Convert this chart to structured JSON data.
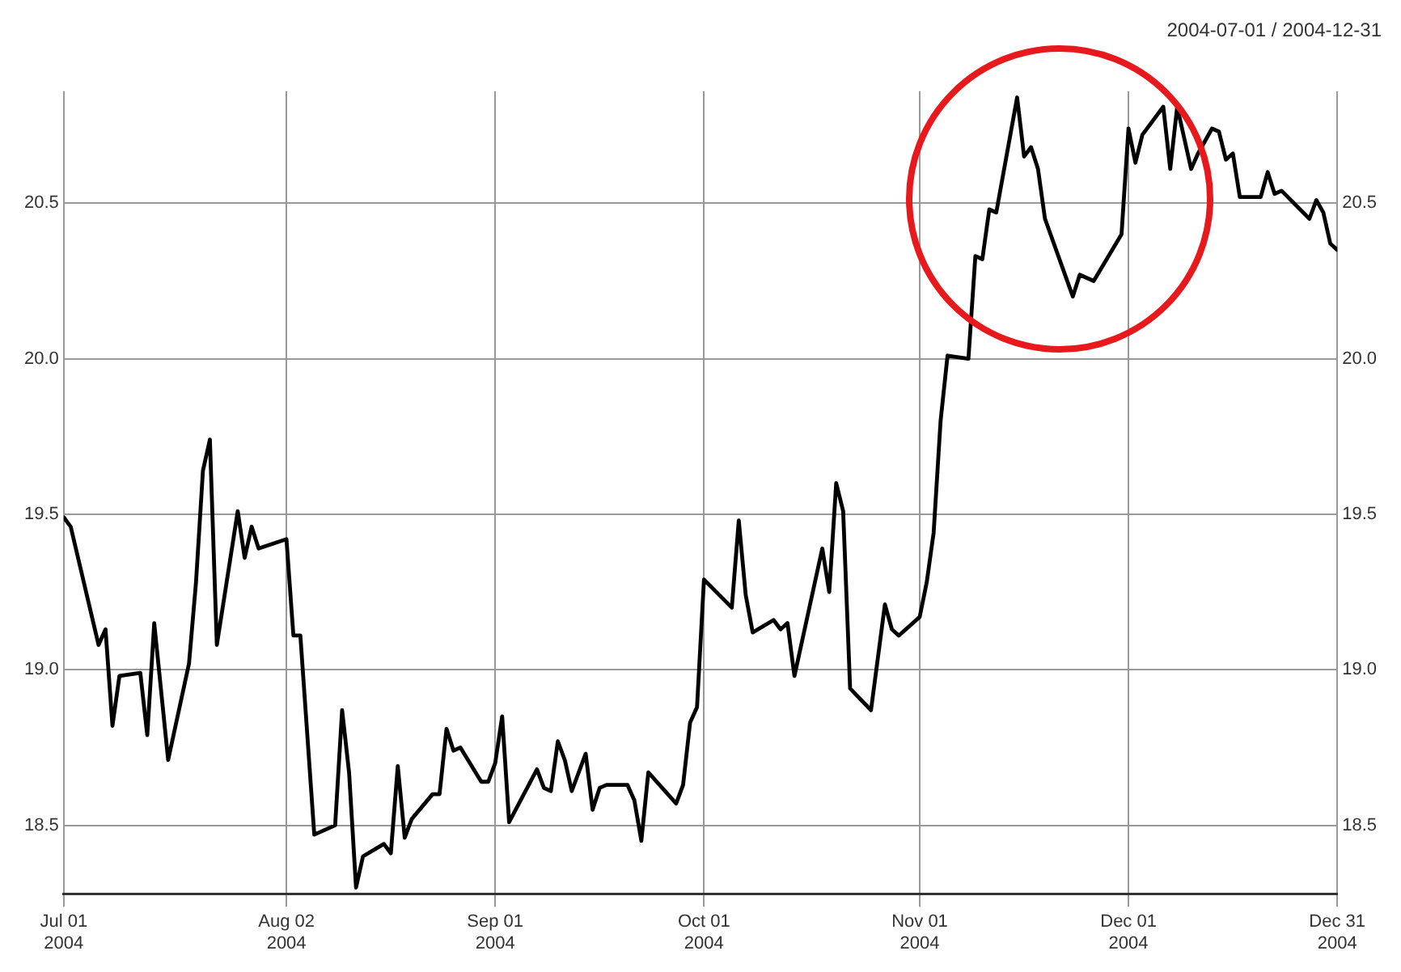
{
  "chart_data": {
    "type": "line",
    "subtitle": "2004-07-01 / 2004-12-31",
    "x": [
      "2004-07-01",
      "2004-07-02",
      "2004-07-06",
      "2004-07-07",
      "2004-07-08",
      "2004-07-09",
      "2004-07-12",
      "2004-07-13",
      "2004-07-14",
      "2004-07-16",
      "2004-07-19",
      "2004-07-20",
      "2004-07-21",
      "2004-07-22",
      "2004-07-23",
      "2004-07-26",
      "2004-07-27",
      "2004-07-28",
      "2004-07-29",
      "2004-08-02",
      "2004-08-03",
      "2004-08-04",
      "2004-08-06",
      "2004-08-09",
      "2004-08-10",
      "2004-08-11",
      "2004-08-12",
      "2004-08-13",
      "2004-08-16",
      "2004-08-17",
      "2004-08-18",
      "2004-08-19",
      "2004-08-20",
      "2004-08-23",
      "2004-08-24",
      "2004-08-25",
      "2004-08-26",
      "2004-08-27",
      "2004-08-30",
      "2004-08-31",
      "2004-09-01",
      "2004-09-02",
      "2004-09-03",
      "2004-09-07",
      "2004-09-08",
      "2004-09-09",
      "2004-09-10",
      "2004-09-11",
      "2004-09-12",
      "2004-09-14",
      "2004-09-15",
      "2004-09-16",
      "2004-09-17",
      "2004-09-20",
      "2004-09-21",
      "2004-09-22",
      "2004-09-23",
      "2004-09-27",
      "2004-09-28",
      "2004-09-29",
      "2004-09-30",
      "2004-10-01",
      "2004-10-05",
      "2004-10-06",
      "2004-10-07",
      "2004-10-08",
      "2004-10-11",
      "2004-10-12",
      "2004-10-13",
      "2004-10-14",
      "2004-10-18",
      "2004-10-19",
      "2004-10-20",
      "2004-10-21",
      "2004-10-22",
      "2004-10-25",
      "2004-10-27",
      "2004-10-28",
      "2004-10-29",
      "2004-11-01",
      "2004-11-02",
      "2004-11-03",
      "2004-11-04",
      "2004-11-05",
      "2004-11-08",
      "2004-11-09",
      "2004-11-10",
      "2004-11-11",
      "2004-11-12",
      "2004-11-15",
      "2004-11-16",
      "2004-11-17",
      "2004-11-18",
      "2004-11-19",
      "2004-11-23",
      "2004-11-24",
      "2004-11-26",
      "2004-11-30",
      "2004-12-01",
      "2004-12-02",
      "2004-12-03",
      "2004-12-06",
      "2004-12-07",
      "2004-12-08",
      "2004-12-10",
      "2004-12-11",
      "2004-12-13",
      "2004-12-14",
      "2004-12-15",
      "2004-12-16",
      "2004-12-17",
      "2004-12-20",
      "2004-12-21",
      "2004-12-22",
      "2004-12-23",
      "2004-12-27",
      "2004-12-28",
      "2004-12-29",
      "2004-12-30",
      "2004-12-31"
    ],
    "series": [
      {
        "color": "#000000",
        "values": [
          19.49,
          19.46,
          19.08,
          19.13,
          18.82,
          18.98,
          18.99,
          18.79,
          19.15,
          18.71,
          19.02,
          19.28,
          19.64,
          19.74,
          19.08,
          19.51,
          19.36,
          19.46,
          19.39,
          19.42,
          19.11,
          19.11,
          18.47,
          18.5,
          18.87,
          18.67,
          18.3,
          18.4,
          18.44,
          18.41,
          18.69,
          18.46,
          18.52,
          18.6,
          18.6,
          18.81,
          18.74,
          18.75,
          18.64,
          18.64,
          18.7,
          18.85,
          18.51,
          18.68,
          18.62,
          18.61,
          18.77,
          18.71,
          18.61,
          18.73,
          18.55,
          18.62,
          18.63,
          18.63,
          18.58,
          18.45,
          18.67,
          18.57,
          18.63,
          18.83,
          18.88,
          19.29,
          19.2,
          19.48,
          19.24,
          19.12,
          19.16,
          19.13,
          19.15,
          18.98,
          19.39,
          19.25,
          19.6,
          19.51,
          18.94,
          18.87,
          19.21,
          19.13,
          19.11,
          19.17,
          19.28,
          19.44,
          19.8,
          20.01,
          20.0,
          20.33,
          20.32,
          20.48,
          20.47,
          20.84,
          20.65,
          20.68,
          20.61,
          20.45,
          20.2,
          20.27,
          20.25,
          20.4,
          20.74,
          20.63,
          20.72,
          20.81,
          20.61,
          20.81,
          20.61,
          20.66,
          20.74,
          20.73,
          20.64,
          20.66,
          20.52,
          20.52,
          20.6,
          20.53,
          20.54,
          20.45,
          20.51,
          20.47,
          20.37,
          20.35
        ]
      }
    ],
    "xlim": [
      "2004-07-01",
      "2004-12-31"
    ],
    "xticks": [
      {
        "value": "2004-07-01",
        "label": "Jul 01\n2004"
      },
      {
        "value": "2004-08-02",
        "label": "Aug 02\n2004"
      },
      {
        "value": "2004-09-01",
        "label": "Sep 01\n2004"
      },
      {
        "value": "2004-10-01",
        "label": "Oct 01\n2004"
      },
      {
        "value": "2004-11-01",
        "label": "Nov 01\n2004"
      },
      {
        "value": "2004-12-01",
        "label": "Dec 01\n2004"
      },
      {
        "value": "2004-12-31",
        "label": "Dec 31\n2004"
      }
    ],
    "ylim": [
      18.28,
      20.86
    ],
    "yticks": [
      18.5,
      {
        "value": 19,
        "label": "19.0"
      },
      19.5,
      {
        "value": 20,
        "label": "20.0"
      },
      20.5
    ],
    "y2lim": [
      18.28,
      20.86
    ],
    "y2ticks": [
      18.5,
      {
        "value": 19,
        "label": "19.0"
      },
      19.5,
      {
        "value": 20,
        "label": "20.0"
      },
      20.5
    ],
    "grid": true,
    "legend": false,
    "marker": "none",
    "line_style": "solid"
  }
}
